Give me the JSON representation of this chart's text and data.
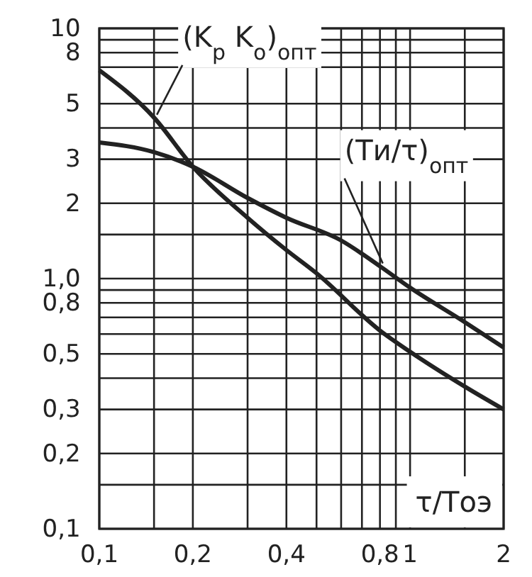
{
  "chart_data": {
    "type": "line",
    "xlabel": "τ/Tоэ",
    "series": [
      {
        "color": "#222222",
        "x": [
          0.1,
          0.15,
          0.2,
          0.3,
          0.4,
          0.5,
          0.8,
          1,
          1.5,
          2
        ],
        "values": [
          6.8,
          4.4,
          2.8,
          1.75,
          1.3,
          1.05,
          0.62,
          0.51,
          0.37,
          0.3
        ]
      },
      {
        "color": "#222222",
        "x": [
          0.1,
          0.15,
          0.2,
          0.3,
          0.4,
          0.6,
          0.8,
          1,
          1.5,
          2
        ],
        "values": [
          3.5,
          3.2,
          2.8,
          2.1,
          1.75,
          1.42,
          1.12,
          0.92,
          0.67,
          0.53
        ]
      }
    ],
    "annotations": [
      {
        "text": "(K$_{р}$ K$_{о}$)$_{опт}$",
        "x": 0.15,
        "y": 4.4
      },
      {
        "text": "(Tи/τ)$_{опт}$",
        "x": 0.8,
        "y": 1.12
      }
    ],
    "log": "xy",
    "grid": true,
    "marker": "none",
    "line_style": "solid",
    "xlim": [
      0.1,
      2
    ],
    "ylim": [
      0.1,
      10
    ],
    "xticks": [
      {
        "value": 0.1,
        "label": "0,1"
      },
      {
        "value": 0.15,
        "label": null
      },
      {
        "value": 0.2,
        "label": "0,2"
      },
      {
        "value": 0.3,
        "label": null
      },
      {
        "value": 0.4,
        "label": "0,4"
      },
      {
        "value": 0.5,
        "label": null
      },
      {
        "value": 0.6,
        "label": null
      },
      {
        "value": 0.7,
        "label": null
      },
      {
        "value": 0.8,
        "label": "0,8"
      },
      {
        "value": 0.9,
        "label": null
      },
      {
        "value": 1,
        "label": "1"
      },
      {
        "value": 1.5,
        "label": null
      },
      {
        "value": 2,
        "label": "2"
      }
    ],
    "yticks": [
      {
        "value": 0.1,
        "label": "0,1"
      },
      {
        "value": 0.15,
        "label": null
      },
      {
        "value": 0.2,
        "label": "0,2"
      },
      {
        "value": 0.3,
        "label": "0,3"
      },
      {
        "value": 0.4,
        "label": null
      },
      {
        "value": 0.5,
        "label": "0,5"
      },
      {
        "value": 0.6,
        "label": null
      },
      {
        "value": 0.7,
        "label": null
      },
      {
        "value": 0.8,
        "label": "0,8"
      },
      {
        "value": 0.9,
        "label": null
      },
      {
        "value": 1,
        "label": "1,0"
      },
      {
        "value": 1.5,
        "label": null
      },
      {
        "value": 2,
        "label": "2"
      },
      {
        "value": 3,
        "label": "3"
      },
      {
        "value": 4,
        "label": null
      },
      {
        "value": 5,
        "label": "5"
      },
      {
        "value": 7,
        "label": null
      },
      {
        "value": 8,
        "label": "8"
      },
      {
        "value": 9,
        "label": null
      },
      {
        "value": 10,
        "label": "10"
      }
    ]
  }
}
